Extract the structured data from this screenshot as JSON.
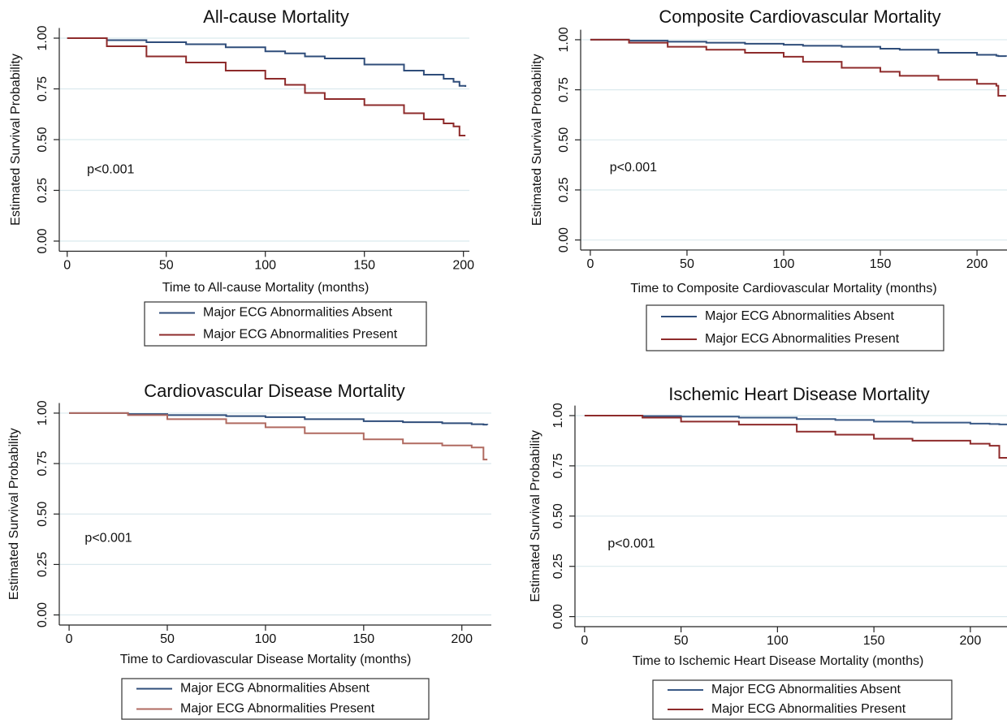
{
  "chart_data": [
    {
      "type": "line",
      "title": "All-cause Mortality",
      "xlabel": "Time to All-cause Mortality (months)",
      "ylabel": "Estimated Survival Probability",
      "annotation": "p<0.001",
      "x": [
        0,
        20,
        40,
        60,
        80,
        100,
        110,
        120,
        130,
        150,
        170,
        180,
        190,
        195,
        198,
        201
      ],
      "series": [
        {
          "name": "Major ECG Abnormalities Absent",
          "color": "#2f4d7a",
          "values": [
            1,
            0.99,
            0.98,
            0.97,
            0.955,
            0.935,
            0.925,
            0.91,
            0.9,
            0.87,
            0.84,
            0.82,
            0.8,
            0.785,
            0.765,
            0.76
          ]
        },
        {
          "name": "Major ECG Abnormalities Present",
          "color": "#8e2b2b",
          "values": [
            1,
            0.96,
            0.91,
            0.88,
            0.84,
            0.8,
            0.77,
            0.73,
            0.7,
            0.67,
            0.63,
            0.6,
            0.58,
            0.565,
            0.52,
            0.52
          ]
        }
      ],
      "xlim": [
        -4,
        203
      ],
      "ylim": [
        -0.05,
        1.05
      ],
      "xticks": [
        0,
        50,
        100,
        150,
        200
      ],
      "yticks": [
        {
          "value": 0,
          "label": "0.00"
        },
        {
          "value": 0.25,
          "label": "0.25"
        },
        {
          "value": 0.5,
          "label": "0.50"
        },
        {
          "value": 0.75,
          "label": "0.75"
        },
        {
          "value": 1,
          "label": "1.00"
        }
      ],
      "grid": true
    },
    {
      "type": "line",
      "title": "Composite Cardiovascular Mortality",
      "xlabel": "Time to Composite Cardiovascular Mortality (months)",
      "ylabel": "Estimated Survival Probability",
      "annotation": "p<0.001",
      "x": [
        0,
        20,
        40,
        60,
        80,
        100,
        110,
        130,
        150,
        160,
        180,
        200,
        210,
        211,
        215
      ],
      "series": [
        {
          "name": "Major ECG Abnormalities Absent",
          "color": "#2f4d7a",
          "values": [
            1,
            0.995,
            0.99,
            0.985,
            0.98,
            0.975,
            0.97,
            0.965,
            0.955,
            0.95,
            0.935,
            0.925,
            0.92,
            0.918,
            0.915
          ]
        },
        {
          "name": "Major ECG Abnormalities Present",
          "color": "#8e2b2b",
          "values": [
            1,
            0.985,
            0.965,
            0.95,
            0.935,
            0.915,
            0.89,
            0.86,
            0.84,
            0.82,
            0.8,
            0.78,
            0.77,
            0.72,
            0.72
          ]
        }
      ],
      "xlim": [
        -5,
        215.5
      ],
      "ylim": [
        -0.05,
        1.05
      ],
      "xticks": [
        0,
        50,
        100,
        150,
        200
      ],
      "yticks": [
        {
          "value": 0,
          "label": "0.00"
        },
        {
          "value": 0.25,
          "label": "0.25"
        },
        {
          "value": 0.5,
          "label": "0.50"
        },
        {
          "value": 0.75,
          "label": "0.75"
        },
        {
          "value": 1,
          "label": "1.00"
        }
      ],
      "grid": true
    },
    {
      "type": "line",
      "title": "Cardiovascular Disease Mortality",
      "xlabel": "Time to Cardiovascular Disease Mortality (months)",
      "ylabel": "Estimated Survival Probability",
      "annotation": "p<0.001",
      "x": [
        0,
        30,
        50,
        80,
        100,
        120,
        150,
        170,
        190,
        205,
        211,
        213
      ],
      "series": [
        {
          "name": "Major ECG Abnormalities Absent",
          "color": "#2f4d7a",
          "values": [
            1,
            0.995,
            0.99,
            0.985,
            0.98,
            0.97,
            0.96,
            0.955,
            0.95,
            0.945,
            0.943,
            0.942
          ]
        },
        {
          "name": "Major ECG Abnormalities Present",
          "color": "#b06a60",
          "values": [
            1,
            0.99,
            0.97,
            0.95,
            0.93,
            0.9,
            0.87,
            0.85,
            0.84,
            0.83,
            0.77,
            0.77
          ]
        }
      ],
      "xlim": [
        -5,
        215
      ],
      "ylim": [
        -0.05,
        1.05
      ],
      "xticks": [
        0,
        50,
        100,
        150,
        200
      ],
      "yticks": [
        {
          "value": 0,
          "label": "0.00"
        },
        {
          "value": 0.25,
          "label": "0.25"
        },
        {
          "value": 0.5,
          "label": "0.50"
        },
        {
          "value": 0.75,
          "label": "0.75"
        },
        {
          "value": 1,
          "label": "1.00"
        }
      ],
      "grid": true
    },
    {
      "type": "line",
      "title": "Ischemic Heart Disease Mortality",
      "xlabel": "Time to Ischemic Heart Disease Mortality (months)",
      "ylabel": "Estimated Survival Probability",
      "annotation": "p<0.001",
      "x": [
        0,
        30,
        50,
        80,
        110,
        130,
        150,
        170,
        200,
        210,
        215,
        219
      ],
      "series": [
        {
          "name": "Major ECG Abnormalities Absent",
          "color": "#3a5a86",
          "values": [
            1,
            0.998,
            0.995,
            0.99,
            0.983,
            0.978,
            0.97,
            0.965,
            0.96,
            0.958,
            0.956,
            0.955
          ]
        },
        {
          "name": "Major ECG Abnormalities Present",
          "color": "#8e2b2b",
          "values": [
            1,
            0.99,
            0.97,
            0.955,
            0.92,
            0.905,
            0.885,
            0.875,
            0.86,
            0.85,
            0.79,
            0.79
          ]
        }
      ],
      "xlim": [
        -5,
        219
      ],
      "ylim": [
        -0.05,
        1.05
      ],
      "xticks": [
        0,
        50,
        100,
        150,
        200
      ],
      "yticks": [
        {
          "value": 0,
          "label": "0.00"
        },
        {
          "value": 0.25,
          "label": "0.25"
        },
        {
          "value": 0.5,
          "label": "0.50"
        },
        {
          "value": 0.75,
          "label": "0.75"
        },
        {
          "value": 1,
          "label": "1.00"
        }
      ],
      "grid": true
    }
  ]
}
